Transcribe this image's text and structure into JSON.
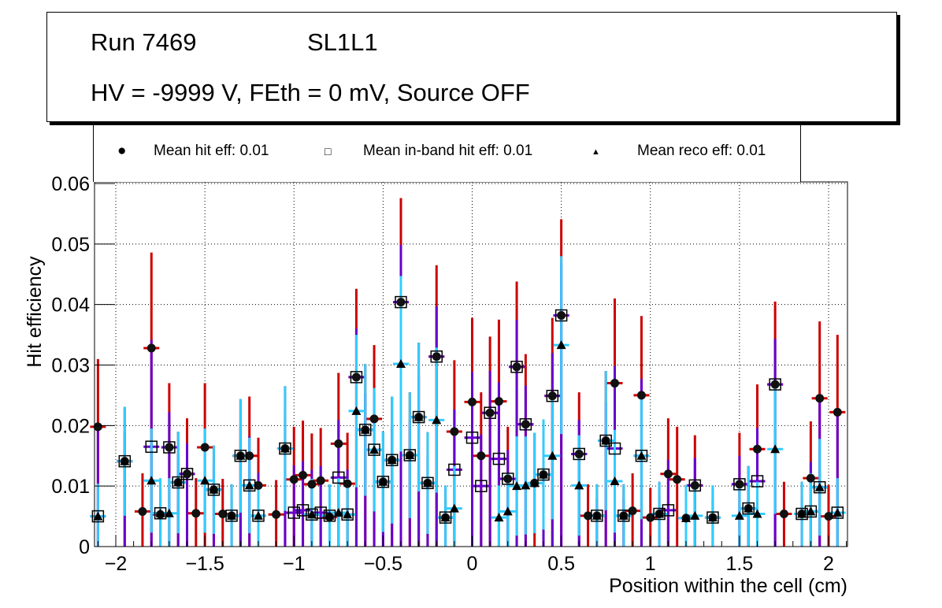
{
  "title": {
    "run": "Run 7469",
    "layer": "SL1L1",
    "conditions": "HV = -9999 V, FEth = 0 mV, Source OFF"
  },
  "legend": [
    {
      "marker": "filled-circle",
      "label": "Mean hit  eff: 0.01"
    },
    {
      "marker": "open-square",
      "label": "Mean in-band hit eff: 0.01"
    },
    {
      "marker": "filled-triangle",
      "label": "Mean reco eff: 0.01"
    }
  ],
  "colors": {
    "hit_error": "#cc0000",
    "inband_error": "#6600cc",
    "reco_error": "#33ccff",
    "marker": "#000000"
  },
  "chart_data": {
    "type": "scatter",
    "title": "",
    "xlabel": "Position within the cell (cm)",
    "ylabel": "Hit efficiency",
    "xlim": [
      -2.1,
      2.1
    ],
    "ylim": [
      0,
      0.06
    ],
    "xticks": [
      -2,
      -1.5,
      -1,
      -0.5,
      0,
      0.5,
      1,
      1.5,
      2
    ],
    "xtick_labels": [
      "−2",
      "−1.5",
      "−1",
      "−0.5",
      "0",
      "0.5",
      "1",
      "1.5",
      "2"
    ],
    "yticks": [
      0,
      0.01,
      0.02,
      0.03,
      0.04,
      0.05,
      0.06
    ],
    "ytick_labels": [
      "0",
      "0.01",
      "0.02",
      "0.03",
      "0.04",
      "0.05",
      "0.06"
    ],
    "grid": true,
    "series": [
      {
        "name": "Mean hit eff",
        "marker": "filled-circle",
        "points": [
          {
            "x": -2.1,
            "y": 0.0198,
            "hi": 0.031
          },
          {
            "x": -1.95,
            "y": 0.0141,
            "hi": 0.0231
          },
          {
            "x": -1.8,
            "y": 0.0328,
            "hi": 0.0486
          },
          {
            "x": -1.85,
            "y": 0.0058,
            "hi": 0.0121
          },
          {
            "x": -1.75,
            "y": 0.0053,
            "hi": 0.011
          },
          {
            "x": -1.7,
            "y": 0.0164,
            "hi": 0.027
          },
          {
            "x": -1.65,
            "y": 0.0106,
            "hi": 0.019
          },
          {
            "x": -1.6,
            "y": 0.012,
            "hi": 0.0212
          },
          {
            "x": -1.55,
            "y": 0.0055,
            "hi": 0.0113
          },
          {
            "x": -1.5,
            "y": 0.0164,
            "hi": 0.027
          },
          {
            "x": -1.45,
            "y": 0.0094,
            "hi": 0.0167
          },
          {
            "x": -1.4,
            "y": 0.0054,
            "hi": 0.0112
          },
          {
            "x": -1.35,
            "y": 0.0051,
            "hi": 0.0103
          },
          {
            "x": -1.3,
            "y": 0.015,
            "hi": 0.0244
          },
          {
            "x": -1.25,
            "y": 0.015,
            "hi": 0.0248
          },
          {
            "x": -1.2,
            "y": 0.0101,
            "hi": 0.018
          },
          {
            "x": -1.1,
            "y": 0.0053,
            "hi": 0.011
          },
          {
            "x": -1.05,
            "y": 0.0162,
            "hi": 0.0265
          },
          {
            "x": -1.0,
            "y": 0.0111,
            "hi": 0.0198
          },
          {
            "x": -0.95,
            "y": 0.0118,
            "hi": 0.0208
          },
          {
            "x": -0.9,
            "y": 0.0103,
            "hi": 0.0187
          },
          {
            "x": -0.85,
            "y": 0.0109,
            "hi": 0.0196
          },
          {
            "x": -0.8,
            "y": 0.0049,
            "hi": 0.0102
          },
          {
            "x": -0.75,
            "y": 0.017,
            "hi": 0.0287
          },
          {
            "x": -0.7,
            "y": 0.0104,
            "hi": 0.0188
          },
          {
            "x": -0.65,
            "y": 0.028,
            "hi": 0.0426
          },
          {
            "x": -0.6,
            "y": 0.0193,
            "hi": 0.0302
          },
          {
            "x": -0.55,
            "y": 0.0211,
            "hi": 0.0333
          },
          {
            "x": -0.5,
            "y": 0.0107,
            "hi": 0.019
          },
          {
            "x": -0.45,
            "y": 0.0143,
            "hi": 0.0248
          },
          {
            "x": -0.4,
            "y": 0.0404,
            "hi": 0.0576
          },
          {
            "x": -0.35,
            "y": 0.0151,
            "hi": 0.0255
          },
          {
            "x": -0.3,
            "y": 0.0214,
            "hi": 0.0337
          },
          {
            "x": -0.25,
            "y": 0.0105,
            "hi": 0.0189
          },
          {
            "x": -0.2,
            "y": 0.0314,
            "hi": 0.0465
          },
          {
            "x": -0.15,
            "y": 0.0048,
            "hi": 0.0101
          },
          {
            "x": -0.1,
            "y": 0.019,
            "hi": 0.0308
          },
          {
            "x": 0.0,
            "y": 0.0239,
            "hi": 0.0378
          },
          {
            "x": 0.05,
            "y": 0.015,
            "hi": 0.0255
          },
          {
            "x": 0.1,
            "y": 0.0221,
            "hi": 0.0347
          },
          {
            "x": 0.15,
            "y": 0.024,
            "hi": 0.0375
          },
          {
            "x": 0.2,
            "y": 0.0112,
            "hi": 0.0198
          },
          {
            "x": 0.25,
            "y": 0.0297,
            "hi": 0.0438
          },
          {
            "x": 0.3,
            "y": 0.0202,
            "hi": 0.0318
          },
          {
            "x": 0.35,
            "y": 0.0105,
            "hi": 0.0188
          },
          {
            "x": 0.4,
            "y": 0.0119,
            "hi": 0.021
          },
          {
            "x": 0.45,
            "y": 0.0249,
            "hi": 0.0378
          },
          {
            "x": 0.5,
            "y": 0.0382,
            "hi": 0.0541
          },
          {
            "x": 0.6,
            "y": 0.0153,
            "hi": 0.0255
          },
          {
            "x": 0.65,
            "y": 0.0051,
            "hi": 0.0103
          },
          {
            "x": 0.7,
            "y": 0.0051,
            "hi": 0.0103
          },
          {
            "x": 0.75,
            "y": 0.0175,
            "hi": 0.029
          },
          {
            "x": 0.8,
            "y": 0.027,
            "hi": 0.041
          },
          {
            "x": 0.85,
            "y": 0.0051,
            "hi": 0.0103
          },
          {
            "x": 0.9,
            "y": 0.0059,
            "hi": 0.0121
          },
          {
            "x": 0.95,
            "y": 0.025,
            "hi": 0.0381
          },
          {
            "x": 1.0,
            "y": 0.0048,
            "hi": 0.0097
          },
          {
            "x": 1.05,
            "y": 0.0054,
            "hi": 0.0107
          },
          {
            "x": 1.1,
            "y": 0.012,
            "hi": 0.0212
          },
          {
            "x": 1.15,
            "y": 0.0111,
            "hi": 0.0198
          },
          {
            "x": 1.2,
            "y": 0.0047,
            "hi": 0.0102
          },
          {
            "x": 1.25,
            "y": 0.0101,
            "hi": 0.0184
          },
          {
            "x": 1.35,
            "y": 0.0048,
            "hi": 0.0101
          },
          {
            "x": 1.5,
            "y": 0.0103,
            "hi": 0.0188
          },
          {
            "x": 1.55,
            "y": 0.0063,
            "hi": 0.0133
          },
          {
            "x": 1.6,
            "y": 0.0161,
            "hi": 0.0268
          },
          {
            "x": 1.7,
            "y": 0.0268,
            "hi": 0.0405
          },
          {
            "x": 1.75,
            "y": 0.0054,
            "hi": 0.0107
          },
          {
            "x": 1.85,
            "y": 0.0054,
            "hi": 0.0107
          },
          {
            "x": 1.9,
            "y": 0.0113,
            "hi": 0.0207
          },
          {
            "x": 1.95,
            "y": 0.0245,
            "hi": 0.0372
          },
          {
            "x": 2.0,
            "y": 0.005,
            "hi": 0.0102
          },
          {
            "x": 2.05,
            "y": 0.0222,
            "hi": 0.035
          }
        ]
      },
      {
        "name": "Mean in-band hit eff",
        "marker": "open-square",
        "points": [
          {
            "x": -2.1,
            "y": 0.005
          },
          {
            "x": -1.95,
            "y": 0.0141
          },
          {
            "x": -1.8,
            "y": 0.0165
          },
          {
            "x": -1.75,
            "y": 0.0055
          },
          {
            "x": -1.7,
            "y": 0.0164
          },
          {
            "x": -1.65,
            "y": 0.0106
          },
          {
            "x": -1.6,
            "y": 0.012
          },
          {
            "x": -1.45,
            "y": 0.0094
          },
          {
            "x": -1.35,
            "y": 0.0051
          },
          {
            "x": -1.3,
            "y": 0.015
          },
          {
            "x": -1.25,
            "y": 0.0101
          },
          {
            "x": -1.2,
            "y": 0.0051
          },
          {
            "x": -1.05,
            "y": 0.0162
          },
          {
            "x": -1.0,
            "y": 0.0056
          },
          {
            "x": -0.95,
            "y": 0.006
          },
          {
            "x": -0.9,
            "y": 0.0053
          },
          {
            "x": -0.85,
            "y": 0.0056
          },
          {
            "x": -0.8,
            "y": 0.0051
          },
          {
            "x": -0.75,
            "y": 0.0114
          },
          {
            "x": -0.7,
            "y": 0.0053
          },
          {
            "x": -0.65,
            "y": 0.028
          },
          {
            "x": -0.6,
            "y": 0.0193
          },
          {
            "x": -0.55,
            "y": 0.016
          },
          {
            "x": -0.5,
            "y": 0.0107
          },
          {
            "x": -0.45,
            "y": 0.0143
          },
          {
            "x": -0.4,
            "y": 0.0404
          },
          {
            "x": -0.35,
            "y": 0.0151
          },
          {
            "x": -0.3,
            "y": 0.0214
          },
          {
            "x": -0.25,
            "y": 0.0105
          },
          {
            "x": -0.2,
            "y": 0.0314
          },
          {
            "x": -0.15,
            "y": 0.0048
          },
          {
            "x": -0.1,
            "y": 0.0127
          },
          {
            "x": 0.0,
            "y": 0.018
          },
          {
            "x": 0.05,
            "y": 0.01
          },
          {
            "x": 0.1,
            "y": 0.0221
          },
          {
            "x": 0.15,
            "y": 0.0145
          },
          {
            "x": 0.2,
            "y": 0.0112
          },
          {
            "x": 0.25,
            "y": 0.0297
          },
          {
            "x": 0.3,
            "y": 0.0202
          },
          {
            "x": 0.4,
            "y": 0.0119
          },
          {
            "x": 0.45,
            "y": 0.0249
          },
          {
            "x": 0.5,
            "y": 0.0382
          },
          {
            "x": 0.6,
            "y": 0.0153
          },
          {
            "x": 0.7,
            "y": 0.0051
          },
          {
            "x": 0.75,
            "y": 0.0175
          },
          {
            "x": 0.8,
            "y": 0.0162
          },
          {
            "x": 0.85,
            "y": 0.0051
          },
          {
            "x": 0.95,
            "y": 0.015
          },
          {
            "x": 1.05,
            "y": 0.0054
          },
          {
            "x": 1.1,
            "y": 0.006
          },
          {
            "x": 1.25,
            "y": 0.0101
          },
          {
            "x": 1.35,
            "y": 0.0048
          },
          {
            "x": 1.5,
            "y": 0.0103
          },
          {
            "x": 1.55,
            "y": 0.0063
          },
          {
            "x": 1.6,
            "y": 0.0108
          },
          {
            "x": 1.7,
            "y": 0.0268
          },
          {
            "x": 1.85,
            "y": 0.0054
          },
          {
            "x": 1.9,
            "y": 0.0058
          },
          {
            "x": 1.95,
            "y": 0.0098
          },
          {
            "x": 2.05,
            "y": 0.0056
          }
        ]
      },
      {
        "name": "Mean reco eff",
        "marker": "filled-triangle",
        "points": [
          {
            "x": -2.1,
            "y": 0.005,
            "hi": 0.0104
          },
          {
            "x": -1.95,
            "y": 0.0141,
            "hi": 0.0231
          },
          {
            "x": -1.8,
            "y": 0.0109,
            "hi": 0.0195
          },
          {
            "x": -1.75,
            "y": 0.0055,
            "hi": 0.0113
          },
          {
            "x": -1.7,
            "y": 0.0055,
            "hi": 0.0113
          },
          {
            "x": -1.65,
            "y": 0.0106,
            "hi": 0.019
          },
          {
            "x": -1.5,
            "y": 0.0109,
            "hi": 0.0195
          },
          {
            "x": -1.45,
            "y": 0.0094,
            "hi": 0.0167
          },
          {
            "x": -1.35,
            "y": 0.0051,
            "hi": 0.0103
          },
          {
            "x": -1.3,
            "y": 0.015,
            "hi": 0.0244
          },
          {
            "x": -1.25,
            "y": 0.0101,
            "hi": 0.018
          },
          {
            "x": -1.2,
            "y": 0.0051,
            "hi": 0.0103
          },
          {
            "x": -1.05,
            "y": 0.0162,
            "hi": 0.0265
          },
          {
            "x": -0.9,
            "y": 0.0053,
            "hi": 0.0112
          },
          {
            "x": -0.8,
            "y": 0.0051,
            "hi": 0.0103
          },
          {
            "x": -0.75,
            "y": 0.0056,
            "hi": 0.0113
          },
          {
            "x": -0.7,
            "y": 0.0053,
            "hi": 0.0112
          },
          {
            "x": -0.65,
            "y": 0.0224,
            "hi": 0.035
          },
          {
            "x": -0.6,
            "y": 0.0193,
            "hi": 0.0302
          },
          {
            "x": -0.55,
            "y": 0.016,
            "hi": 0.0262
          },
          {
            "x": -0.5,
            "y": 0.0107,
            "hi": 0.019
          },
          {
            "x": -0.45,
            "y": 0.0143,
            "hi": 0.0248
          },
          {
            "x": -0.4,
            "y": 0.0302,
            "hi": 0.0447
          },
          {
            "x": -0.35,
            "y": 0.0151,
            "hi": 0.0255
          },
          {
            "x": -0.3,
            "y": 0.0214,
            "hi": 0.0337
          },
          {
            "x": -0.25,
            "y": 0.0105,
            "hi": 0.0189
          },
          {
            "x": -0.2,
            "y": 0.0209,
            "hi": 0.0329
          },
          {
            "x": -0.15,
            "y": 0.0048,
            "hi": 0.0101
          },
          {
            "x": -0.1,
            "y": 0.0063,
            "hi": 0.0133
          },
          {
            "x": 0.0,
            "y": 0.0,
            "hi": 0.0
          },
          {
            "x": 0.15,
            "y": 0.0048,
            "hi": 0.0101
          },
          {
            "x": 0.2,
            "y": 0.0058,
            "hi": 0.0121
          },
          {
            "x": 0.25,
            "y": 0.01,
            "hi": 0.0182
          },
          {
            "x": 0.3,
            "y": 0.0101,
            "hi": 0.0182
          },
          {
            "x": 0.35,
            "y": 0.0105,
            "hi": 0.0188
          },
          {
            "x": 0.4,
            "y": 0.0119,
            "hi": 0.021
          },
          {
            "x": 0.45,
            "y": 0.015,
            "hi": 0.0255
          },
          {
            "x": 0.5,
            "y": 0.0333,
            "hi": 0.048
          },
          {
            "x": 0.6,
            "y": 0.0101,
            "hi": 0.0184
          },
          {
            "x": 0.7,
            "y": 0.0051,
            "hi": 0.0103
          },
          {
            "x": 0.75,
            "y": 0.0175,
            "hi": 0.029
          },
          {
            "x": 0.8,
            "y": 0.0108,
            "hi": 0.0193
          },
          {
            "x": 0.85,
            "y": 0.0051,
            "hi": 0.0103
          },
          {
            "x": 0.95,
            "y": 0.015,
            "hi": 0.0255
          },
          {
            "x": 1.05,
            "y": 0.0054,
            "hi": 0.0107
          },
          {
            "x": 1.2,
            "y": 0.0047,
            "hi": 0.0102
          },
          {
            "x": 1.25,
            "y": 0.0051,
            "hi": 0.0104
          },
          {
            "x": 1.35,
            "y": 0.0048,
            "hi": 0.0101
          },
          {
            "x": 1.5,
            "y": 0.0051,
            "hi": 0.0103
          },
          {
            "x": 1.55,
            "y": 0.0063,
            "hi": 0.0133
          },
          {
            "x": 1.6,
            "y": 0.0054,
            "hi": 0.0107
          },
          {
            "x": 1.7,
            "y": 0.0161,
            "hi": 0.0268
          },
          {
            "x": 1.85,
            "y": 0.0054,
            "hi": 0.0107
          },
          {
            "x": 1.9,
            "y": 0.0058,
            "hi": 0.0121
          },
          {
            "x": 1.95,
            "y": 0.0098,
            "hi": 0.0178
          },
          {
            "x": 2.05,
            "y": 0.0056,
            "hi": 0.0113
          }
        ]
      }
    ]
  }
}
